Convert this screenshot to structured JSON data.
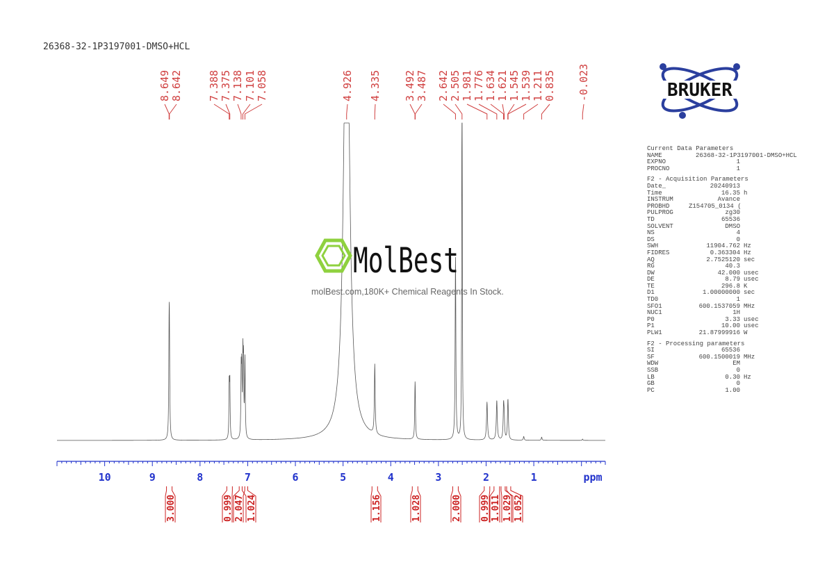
{
  "title": "26368-32-1P3197001-DMSO+HCL",
  "brand_logo": "BRUKER",
  "watermark": {
    "logo": "MolBest",
    "subtitle": "molBest.com,180K+ Chemical Reagents In Stock."
  },
  "colors": {
    "peak_labels": "#d04040",
    "axis": "#2233cc",
    "integrals": "#cc2222",
    "spectrum": "#555555",
    "bruker_blue": "#2b3f9e"
  },
  "parameters": {
    "sections": [
      {
        "heading": "Current Data Parameters",
        "rows": [
          [
            "NAME",
            "26368-32-1P3197001-DMSO+HCL",
            ""
          ],
          [
            "EXPNO",
            "1",
            ""
          ],
          [
            "PROCNO",
            "1",
            ""
          ]
        ]
      },
      {
        "heading": "F2 - Acquisition Parameters",
        "rows": [
          [
            "Date_",
            "20240913",
            ""
          ],
          [
            "Time",
            "16.35",
            "h"
          ],
          [
            "INSTRUM",
            "Avance",
            ""
          ],
          [
            "PROBHD",
            "Z154705_0134 (",
            ""
          ],
          [
            "PULPROG",
            "zg30",
            ""
          ],
          [
            "TD",
            "65536",
            ""
          ],
          [
            "SOLVENT",
            "DMSO",
            ""
          ],
          [
            "NS",
            "4",
            ""
          ],
          [
            "DS",
            "0",
            ""
          ],
          [
            "SWH",
            "11904.762",
            "Hz"
          ],
          [
            "FIDRES",
            "0.363304",
            "Hz"
          ],
          [
            "AQ",
            "2.7525120",
            "sec"
          ],
          [
            "RG",
            "40.3",
            ""
          ],
          [
            "DW",
            "42.000",
            "usec"
          ],
          [
            "DE",
            "8.79",
            "usec"
          ],
          [
            "TE",
            "296.8",
            "K"
          ],
          [
            "D1",
            "1.00000000",
            "sec"
          ],
          [
            "TD0",
            "1",
            ""
          ],
          [
            "SFO1",
            "600.1537059",
            "MHz"
          ],
          [
            "NUC1",
            "1H",
            ""
          ],
          [
            "P0",
            "3.33",
            "usec"
          ],
          [
            "P1",
            "10.00",
            "usec"
          ],
          [
            "PLW1",
            "21.87999916",
            "W"
          ]
        ]
      },
      {
        "heading": "F2 - Processing parameters",
        "rows": [
          [
            "SI",
            "65536",
            ""
          ],
          [
            "SF",
            "600.1500019",
            "MHz"
          ],
          [
            "WDW",
            "EM",
            ""
          ],
          [
            "SSB",
            "0",
            ""
          ],
          [
            "LB",
            "0.30",
            "Hz"
          ],
          [
            "GB",
            "0",
            ""
          ],
          [
            "PC",
            "1.00",
            ""
          ]
        ]
      }
    ]
  },
  "chart_data": {
    "type": "line",
    "xlabel": "ppm",
    "xlim": [
      11.0,
      -0.5
    ],
    "x_reversed": true,
    "x_ticks": [
      10,
      9,
      8,
      7,
      6,
      5,
      4,
      3,
      2,
      1
    ],
    "grid": false,
    "peak_labels": [
      "8.649",
      "8.642",
      "7.388",
      "7.375",
      "7.138",
      "7.101",
      "7.058",
      "4.926",
      "4.335",
      "3.492",
      "3.487",
      "2.642",
      "2.505",
      "1.981",
      "1.776",
      "1.634",
      "1.621",
      "1.545",
      "1.539",
      "1.211",
      "0.835",
      "-0.023"
    ],
    "peaks": [
      {
        "ppm": 8.649,
        "intensity": 0.26,
        "width": 0.008
      },
      {
        "ppm": 8.642,
        "intensity": 0.26,
        "width": 0.008
      },
      {
        "ppm": 7.388,
        "intensity": 0.17,
        "width": 0.007
      },
      {
        "ppm": 7.375,
        "intensity": 0.17,
        "width": 0.007
      },
      {
        "ppm": 7.138,
        "intensity": 0.2,
        "width": 0.007
      },
      {
        "ppm": 7.125,
        "intensity": 0.2,
        "width": 0.007
      },
      {
        "ppm": 7.101,
        "intensity": 0.24,
        "width": 0.007
      },
      {
        "ppm": 7.088,
        "intensity": 0.22,
        "width": 0.007
      },
      {
        "ppm": 7.058,
        "intensity": 0.25,
        "width": 0.008
      },
      {
        "ppm": 4.926,
        "intensity": 1.6,
        "width": 0.07
      },
      {
        "ppm": 4.335,
        "intensity": 0.22,
        "width": 0.01
      },
      {
        "ppm": 3.492,
        "intensity": 0.1,
        "width": 0.008
      },
      {
        "ppm": 3.487,
        "intensity": 0.1,
        "width": 0.008
      },
      {
        "ppm": 2.642,
        "intensity": 0.58,
        "width": 0.009
      },
      {
        "ppm": 2.505,
        "intensity": 1.5,
        "width": 0.006
      },
      {
        "ppm": 1.981,
        "intensity": 0.12,
        "width": 0.012
      },
      {
        "ppm": 1.776,
        "intensity": 0.125,
        "width": 0.012
      },
      {
        "ppm": 1.634,
        "intensity": 0.1,
        "width": 0.01
      },
      {
        "ppm": 1.621,
        "intensity": 0.06,
        "width": 0.01
      },
      {
        "ppm": 1.545,
        "intensity": 0.07,
        "width": 0.01
      },
      {
        "ppm": 1.539,
        "intensity": 0.07,
        "width": 0.01
      },
      {
        "ppm": 1.211,
        "intensity": 0.012,
        "width": 0.01
      },
      {
        "ppm": 0.835,
        "intensity": 0.01,
        "width": 0.01
      },
      {
        "ppm": -0.023,
        "intensity": 0.004,
        "width": 0.008
      }
    ],
    "integrals": [
      {
        "ppm": 8.645,
        "value": "3.000"
      },
      {
        "ppm": 7.38,
        "value": "0.999"
      },
      {
        "ppm": 7.12,
        "value": "2.047"
      },
      {
        "ppm": 7.058,
        "value": "1.024"
      },
      {
        "ppm": 4.335,
        "value": "1.156"
      },
      {
        "ppm": 3.49,
        "value": "1.028"
      },
      {
        "ppm": 2.642,
        "value": "2.000"
      },
      {
        "ppm": 1.981,
        "value": "0.999"
      },
      {
        "ppm": 1.776,
        "value": "1.011"
      },
      {
        "ppm": 1.628,
        "value": "1.029"
      },
      {
        "ppm": 1.542,
        "value": "1.052"
      }
    ]
  }
}
